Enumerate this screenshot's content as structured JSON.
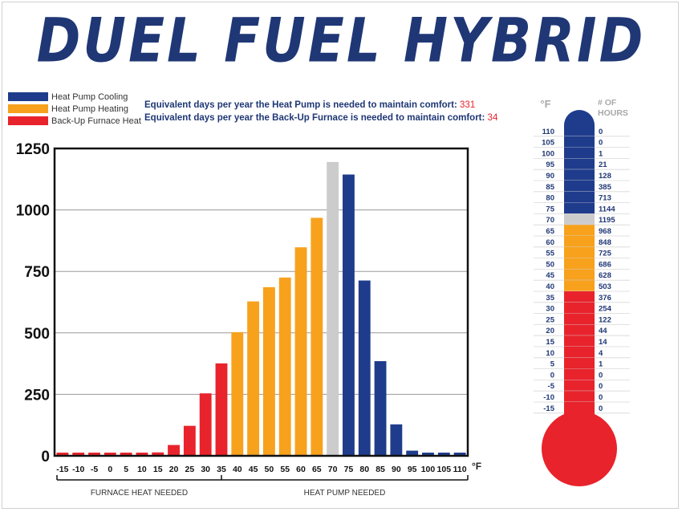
{
  "title": "DUEL FUEL HYBRID",
  "legend": [
    {
      "label": "Heat Pump Cooling",
      "color": "#1f3c8c"
    },
    {
      "label": "Heat Pump Heating",
      "color": "#f7a11d"
    },
    {
      "label": "Back-Up Furnace Heat",
      "color": "#e8232c"
    }
  ],
  "stats": [
    {
      "text": "Equivalent days per year the Heat Pump is needed to maintain comfort:",
      "value": "331"
    },
    {
      "text": "Equivalent days per year the Back-Up Furnace is needed to maintain comfort:",
      "value": "34"
    }
  ],
  "colors": {
    "cooling": "#1f3c8c",
    "heating": "#f7a11d",
    "furnace": "#e8232c",
    "neutral": "#cccccc"
  },
  "chart_data": {
    "type": "bar",
    "categories": [
      "-15",
      "-10",
      "-5",
      "0",
      "5",
      "10",
      "15",
      "20",
      "25",
      "30",
      "35",
      "40",
      "45",
      "50",
      "55",
      "60",
      "65",
      "70",
      "75",
      "80",
      "85",
      "90",
      "95",
      "100",
      "105",
      "110"
    ],
    "values": [
      0,
      0,
      0,
      0,
      1,
      4,
      14,
      44,
      122,
      254,
      376,
      503,
      628,
      686,
      725,
      848,
      968,
      1195,
      1144,
      713,
      385,
      128,
      21,
      1,
      0,
      0
    ],
    "bar_groups": [
      "furnace",
      "furnace",
      "furnace",
      "furnace",
      "furnace",
      "furnace",
      "furnace",
      "furnace",
      "furnace",
      "furnace",
      "furnace",
      "heating",
      "heating",
      "heating",
      "heating",
      "heating",
      "heating",
      "neutral",
      "cooling",
      "cooling",
      "cooling",
      "cooling",
      "cooling",
      "cooling",
      "cooling",
      "cooling"
    ],
    "y_ticks": [
      0,
      250,
      500,
      750,
      1000,
      1250
    ],
    "ylim": [
      0,
      1250
    ],
    "x_unit": "°F",
    "grid": true,
    "legend_position": "top-left",
    "region_labels": [
      "FURNACE HEAT NEEDED",
      "HEAT PUMP NEEDED"
    ],
    "region_split_at": "35"
  },
  "thermometer": {
    "header_temp": "°F",
    "header_hours": "# OF HOURS",
    "rows": [
      {
        "temp": "110",
        "hours": "0",
        "group": "cooling"
      },
      {
        "temp": "105",
        "hours": "0",
        "group": "cooling"
      },
      {
        "temp": "100",
        "hours": "1",
        "group": "cooling"
      },
      {
        "temp": "95",
        "hours": "21",
        "group": "cooling"
      },
      {
        "temp": "90",
        "hours": "128",
        "group": "cooling"
      },
      {
        "temp": "85",
        "hours": "385",
        "group": "cooling"
      },
      {
        "temp": "80",
        "hours": "713",
        "group": "cooling"
      },
      {
        "temp": "75",
        "hours": "1144",
        "group": "cooling"
      },
      {
        "temp": "70",
        "hours": "1195",
        "group": "neutral"
      },
      {
        "temp": "65",
        "hours": "968",
        "group": "heating"
      },
      {
        "temp": "60",
        "hours": "848",
        "group": "heating"
      },
      {
        "temp": "55",
        "hours": "725",
        "group": "heating"
      },
      {
        "temp": "50",
        "hours": "686",
        "group": "heating"
      },
      {
        "temp": "45",
        "hours": "628",
        "group": "heating"
      },
      {
        "temp": "40",
        "hours": "503",
        "group": "heating"
      },
      {
        "temp": "35",
        "hours": "376",
        "group": "furnace"
      },
      {
        "temp": "30",
        "hours": "254",
        "group": "furnace"
      },
      {
        "temp": "25",
        "hours": "122",
        "group": "furnace"
      },
      {
        "temp": "20",
        "hours": "44",
        "group": "furnace"
      },
      {
        "temp": "15",
        "hours": "14",
        "group": "furnace"
      },
      {
        "temp": "10",
        "hours": "4",
        "group": "furnace"
      },
      {
        "temp": "5",
        "hours": "1",
        "group": "furnace"
      },
      {
        "temp": "0",
        "hours": "0",
        "group": "furnace"
      },
      {
        "temp": "-5",
        "hours": "0",
        "group": "furnace"
      },
      {
        "temp": "-10",
        "hours": "0",
        "group": "furnace"
      },
      {
        "temp": "-15",
        "hours": "0",
        "group": "furnace"
      }
    ]
  }
}
